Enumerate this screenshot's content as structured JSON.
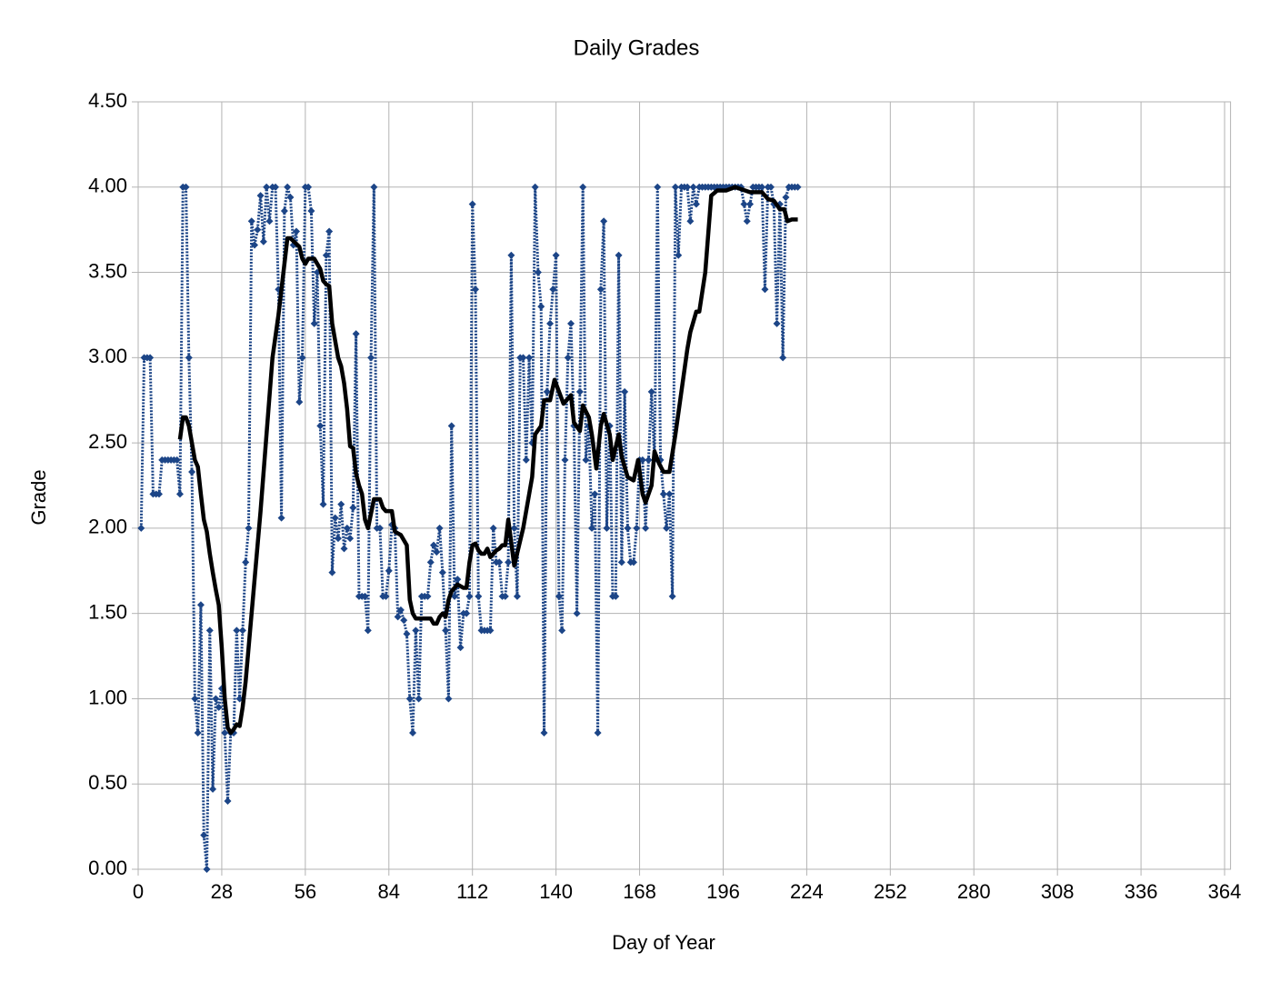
{
  "chart_data": {
    "type": "line",
    "title": "Daily Grades",
    "x_label": "Day of Year",
    "y_label": "Grade",
    "xlim": [
      0,
      366
    ],
    "ylim": [
      0,
      4.5
    ],
    "grid": true,
    "xticks": [
      0,
      28,
      56,
      84,
      112,
      140,
      168,
      196,
      224,
      252,
      280,
      308,
      336,
      364
    ],
    "yticks": [
      {
        "value": 0,
        "label": "0.00"
      },
      {
        "value": 0.5,
        "label": "0.50"
      },
      {
        "value": 1,
        "label": "1.00"
      },
      {
        "value": 1.5,
        "label": "1.50"
      },
      {
        "value": 2,
        "label": "2.00"
      },
      {
        "value": 2.5,
        "label": "2.50"
      },
      {
        "value": 3,
        "label": "3.00"
      },
      {
        "value": 3.5,
        "label": "3.50"
      },
      {
        "value": 4,
        "label": "4.00"
      },
      {
        "value": 4.5,
        "label": "4.50"
      }
    ],
    "series": [
      {
        "color": "#1c4587",
        "line_style": "dotted",
        "marker": "diamond",
        "x": [
          1,
          2,
          3,
          4,
          5,
          6,
          7,
          8,
          9,
          10,
          11,
          12,
          13,
          14,
          15,
          16,
          17,
          18,
          19,
          20,
          21,
          22,
          23,
          24,
          25,
          26,
          27,
          28,
          29,
          30,
          31,
          32,
          33,
          34,
          35,
          36,
          37,
          38,
          39,
          40,
          41,
          42,
          43,
          44,
          45,
          46,
          47,
          48,
          49,
          50,
          51,
          52,
          53,
          54,
          55,
          56,
          57,
          58,
          59,
          60,
          61,
          62,
          63,
          64,
          65,
          66,
          67,
          68,
          69,
          70,
          71,
          72,
          73,
          74,
          75,
          76,
          77,
          78,
          79,
          80,
          81,
          82,
          83,
          84,
          85,
          86,
          87,
          88,
          89,
          90,
          91,
          92,
          93,
          94,
          95,
          96,
          97,
          98,
          99,
          100,
          101,
          102,
          103,
          104,
          105,
          106,
          107,
          108,
          109,
          110,
          111,
          112,
          113,
          114,
          115,
          116,
          117,
          118,
          119,
          120,
          121,
          122,
          123,
          124,
          125,
          126,
          127,
          128,
          129,
          130,
          131,
          132,
          133,
          134,
          135,
          136,
          137,
          138,
          139,
          140,
          141,
          142,
          143,
          144,
          145,
          146,
          147,
          148,
          149,
          150,
          151,
          152,
          153,
          154,
          155,
          156,
          157,
          158,
          159,
          160,
          161,
          162,
          163,
          164,
          165,
          166,
          167,
          168,
          169,
          170,
          171,
          172,
          173,
          174,
          175,
          176,
          177,
          178,
          179,
          180,
          181,
          182,
          183,
          184,
          185,
          186,
          187,
          188,
          189,
          190,
          191,
          192,
          193,
          194,
          195,
          196,
          197,
          198,
          199,
          200,
          201,
          202,
          203,
          204,
          205,
          206,
          207,
          208,
          209,
          210,
          211,
          212,
          213,
          214,
          215,
          216,
          217,
          218,
          219,
          220,
          221
        ],
        "values": [
          2.0,
          3.0,
          3.0,
          3.0,
          2.2,
          2.2,
          2.2,
          2.4,
          2.4,
          2.4,
          2.4,
          2.4,
          2.4,
          2.2,
          4.0,
          4.0,
          3.0,
          2.33,
          1.0,
          0.8,
          1.55,
          0.2,
          0.0,
          1.4,
          0.47,
          1.0,
          0.95,
          1.06,
          0.8,
          0.4,
          0.8,
          0.8,
          1.4,
          1.0,
          1.4,
          1.8,
          2.0,
          3.8,
          3.66,
          3.75,
          3.95,
          3.68,
          4.0,
          3.8,
          4.0,
          4.0,
          3.4,
          2.06,
          3.86,
          4.0,
          3.94,
          3.66,
          3.74,
          2.74,
          3.0,
          4.0,
          4.0,
          3.86,
          3.2,
          3.5,
          2.6,
          2.14,
          3.6,
          3.74,
          1.74,
          2.06,
          1.94,
          2.14,
          1.88,
          2.0,
          1.94,
          2.12,
          3.14,
          1.6,
          1.6,
          1.6,
          1.4,
          3.0,
          4.0,
          2.0,
          2.0,
          1.6,
          1.6,
          1.75,
          2.02,
          2.0,
          1.48,
          1.52,
          1.46,
          1.38,
          1.0,
          0.8,
          1.4,
          1.0,
          1.6,
          1.6,
          1.6,
          1.8,
          1.9,
          1.86,
          2.0,
          1.74,
          1.4,
          1.0,
          2.6,
          1.6,
          1.7,
          1.3,
          1.5,
          1.5,
          1.6,
          3.9,
          3.4,
          1.6,
          1.4,
          1.4,
          1.4,
          1.4,
          2.0,
          1.8,
          1.8,
          1.6,
          1.6,
          1.8,
          3.6,
          2.0,
          1.6,
          3.0,
          3.0,
          2.4,
          3.0,
          2.5,
          4.0,
          3.5,
          3.3,
          0.8,
          2.8,
          3.2,
          3.4,
          3.6,
          1.6,
          1.4,
          2.4,
          3.0,
          3.2,
          2.6,
          1.5,
          2.8,
          4.0,
          2.4,
          2.6,
          2.0,
          2.2,
          0.8,
          3.4,
          3.8,
          2.0,
          2.6,
          1.6,
          1.6,
          3.6,
          1.8,
          2.8,
          2.0,
          1.8,
          1.8,
          2.0,
          2.4,
          2.4,
          2.0,
          2.4,
          2.8,
          2.4,
          4.0,
          2.4,
          2.2,
          2.0,
          2.2,
          1.6,
          4.0,
          3.6,
          4.0,
          4.0,
          4.0,
          3.8,
          4.0,
          3.9,
          4.0,
          4.0,
          4.0,
          4.0,
          4.0,
          4.0,
          4.0,
          4.0,
          4.0,
          4.0,
          4.0,
          4.0,
          4.0,
          4.0,
          4.0,
          3.9,
          3.8,
          3.9,
          4.0,
          4.0,
          4.0,
          4.0,
          3.4,
          4.0,
          4.0,
          3.9,
          3.2,
          3.9,
          3.0,
          3.94,
          4.0,
          4.0,
          4.0,
          4.0
        ]
      },
      {
        "color": "#000000",
        "line_style": "solid",
        "x": [
          14,
          15,
          16,
          17,
          18,
          19,
          20,
          21,
          22,
          23,
          24,
          25,
          26,
          27,
          28,
          29,
          30,
          31,
          32,
          33,
          34,
          35,
          36,
          37,
          39,
          41,
          43,
          45,
          47,
          49,
          50,
          51,
          54,
          55,
          56,
          57,
          58,
          59,
          60,
          61,
          62,
          63,
          64,
          65,
          66,
          67,
          68,
          69,
          70,
          71,
          72,
          73,
          74,
          75,
          76,
          77,
          79,
          80,
          81,
          82,
          83,
          84,
          85,
          86,
          87,
          88,
          89,
          90,
          91,
          92,
          93,
          96,
          98,
          99,
          100,
          101,
          102,
          103,
          104,
          105,
          106,
          107,
          108,
          109,
          110,
          111,
          112,
          113,
          114,
          115,
          116,
          117,
          118,
          119,
          120,
          121,
          122,
          123,
          124,
          126,
          129,
          132,
          133,
          135,
          136,
          138,
          139.5,
          141,
          142.5,
          145,
          146,
          148,
          149,
          151,
          152,
          153.5,
          155,
          156,
          158,
          159,
          161,
          162,
          164,
          166,
          167.5,
          169,
          170,
          172,
          173,
          174.5,
          176,
          178,
          180,
          182,
          184,
          185,
          187,
          188,
          190,
          192,
          194,
          197,
          200,
          205,
          209,
          211,
          213,
          215,
          216.5,
          217.5,
          219,
          221
        ],
        "values": [
          2.52,
          2.65,
          2.65,
          2.6,
          2.5,
          2.4,
          2.36,
          2.2,
          2.05,
          1.98,
          1.85,
          1.74,
          1.64,
          1.55,
          1.3,
          1.0,
          0.83,
          0.8,
          0.82,
          0.85,
          0.84,
          0.95,
          1.1,
          1.3,
          1.7,
          2.1,
          2.55,
          3.0,
          3.25,
          3.55,
          3.7,
          3.7,
          3.65,
          3.58,
          3.55,
          3.58,
          3.58,
          3.58,
          3.55,
          3.52,
          3.45,
          3.43,
          3.42,
          3.2,
          3.1,
          3.0,
          2.95,
          2.85,
          2.7,
          2.48,
          2.47,
          2.32,
          2.25,
          2.2,
          2.05,
          2.0,
          2.17,
          2.17,
          2.17,
          2.12,
          2.1,
          2.1,
          2.1,
          1.98,
          1.97,
          1.96,
          1.93,
          1.9,
          1.58,
          1.5,
          1.47,
          1.47,
          1.47,
          1.44,
          1.44,
          1.48,
          1.5,
          1.48,
          1.58,
          1.63,
          1.65,
          1.67,
          1.66,
          1.65,
          1.65,
          1.8,
          1.9,
          1.91,
          1.87,
          1.85,
          1.85,
          1.88,
          1.83,
          1.85,
          1.87,
          1.88,
          1.9,
          1.9,
          2.05,
          1.78,
          2.0,
          2.3,
          2.55,
          2.6,
          2.75,
          2.75,
          2.87,
          2.8,
          2.73,
          2.78,
          2.62,
          2.57,
          2.72,
          2.65,
          2.55,
          2.35,
          2.6,
          2.67,
          2.55,
          2.4,
          2.55,
          2.42,
          2.3,
          2.28,
          2.4,
          2.2,
          2.15,
          2.25,
          2.45,
          2.38,
          2.33,
          2.33,
          2.55,
          2.8,
          3.05,
          3.15,
          3.27,
          3.27,
          3.5,
          3.95,
          3.98,
          3.98,
          4.0,
          3.97,
          3.97,
          3.93,
          3.92,
          3.87,
          3.87,
          3.8,
          3.81,
          3.81
        ]
      }
    ]
  }
}
